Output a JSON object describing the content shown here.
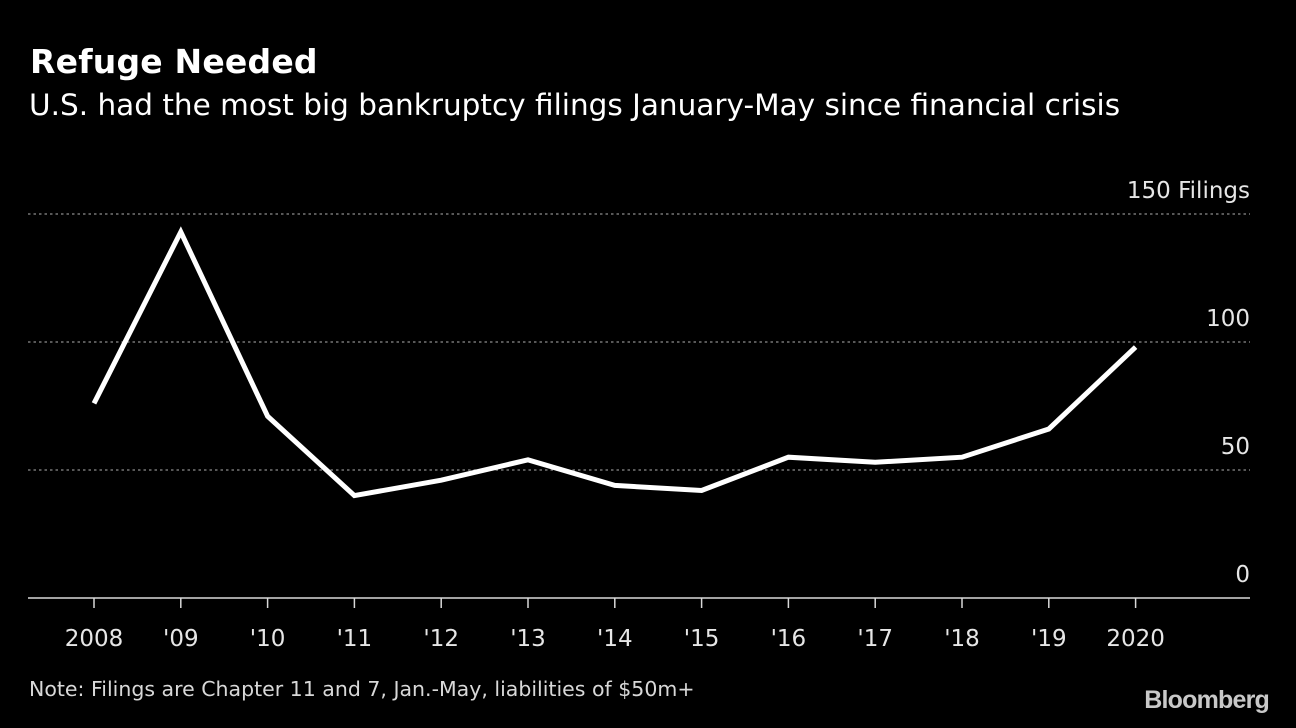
{
  "header": {
    "title": "Refuge Needed",
    "subtitle": "U.S. had the most big bankruptcy filings January-May since financial crisis"
  },
  "chart_data": {
    "type": "line",
    "title": "Refuge Needed",
    "subtitle": "U.S. had the most big bankruptcy filings January-May since financial crisis",
    "xlabel": "",
    "ylabel": "",
    "x": [
      2008,
      2009,
      2010,
      2011,
      2012,
      2013,
      2014,
      2015,
      2016,
      2017,
      2018,
      2019,
      2020
    ],
    "x_tick_labels": [
      "2008",
      "'09",
      "'10",
      "'11",
      "'12",
      "'13",
      "'14",
      "'15",
      "'16",
      "'17",
      "'18",
      "'19",
      "2020"
    ],
    "series": [
      {
        "values": [
          76,
          143,
          71,
          40,
          46,
          54,
          44,
          42,
          55,
          53,
          55,
          66,
          98
        ]
      }
    ],
    "ylim": [
      0,
      150
    ],
    "y_ticks": [
      0,
      50,
      100,
      150
    ],
    "y_tick_labels": [
      "0",
      "50",
      "100",
      "150 Filings"
    ],
    "y_unit": "Filings",
    "y_axis_position": "right",
    "grid": "horizontal dotted",
    "legend": "none",
    "colors": {
      "background": "#000000",
      "line": "#ffffff",
      "grid": "#8c8c8c",
      "axis": "#d9d9d9",
      "text": "#e6e6e6"
    }
  },
  "footer": {
    "note": "Note: Filings are Chapter 11 and 7, Jan.-May, liabilities of $50m+",
    "source_logo": "Bloomberg"
  }
}
